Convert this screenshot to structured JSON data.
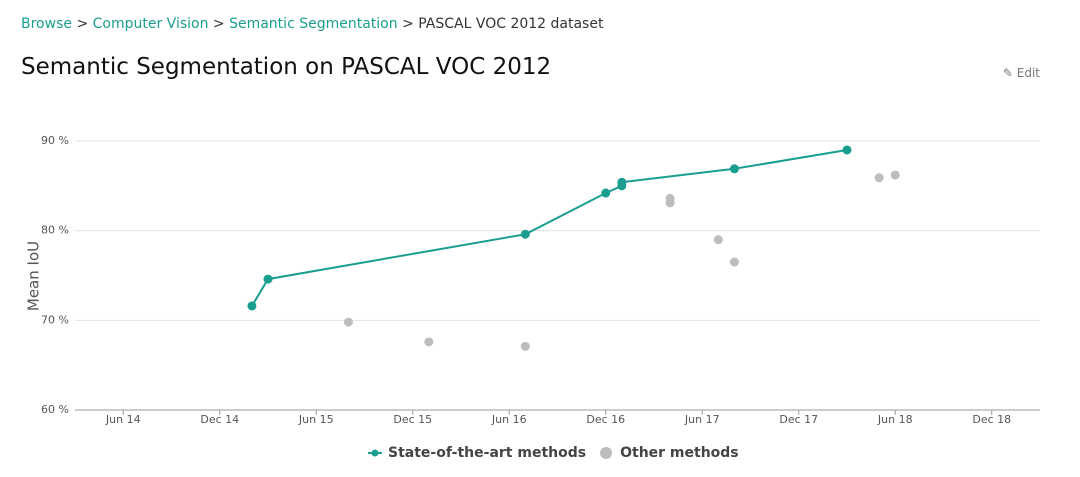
{
  "breadcrumb": {
    "items": [
      "Browse",
      "Computer Vision",
      "Semantic Segmentation",
      "PASCAL VOC 2012 dataset"
    ],
    "separator": ">"
  },
  "title": "Semantic Segmentation on PASCAL VOC 2012",
  "edit": "Edit",
  "chart_data": {
    "type": "line",
    "ylabel": "Mean IoU",
    "xlim": [
      "2014-03",
      "2019-03"
    ],
    "xticks": [
      {
        "value": "2014-06",
        "label": "Jun 14"
      },
      {
        "value": "2014-12",
        "label": "Dec 14"
      },
      {
        "value": "2015-06",
        "label": "Jun 15"
      },
      {
        "value": "2015-12",
        "label": "Dec 15"
      },
      {
        "value": "2016-06",
        "label": "Jun 16"
      },
      {
        "value": "2016-12",
        "label": "Dec 16"
      },
      {
        "value": "2017-06",
        "label": "Jun 17"
      },
      {
        "value": "2017-12",
        "label": "Dec 17"
      },
      {
        "value": "2018-06",
        "label": "Jun 18"
      },
      {
        "value": "2018-12",
        "label": "Dec 18"
      }
    ],
    "ylim": [
      60,
      90
    ],
    "yticks": [
      {
        "value": 60,
        "label": "60 %"
      },
      {
        "value": 70,
        "label": "70 %"
      },
      {
        "value": 80,
        "label": "80 %"
      },
      {
        "value": 90,
        "label": "90 %"
      }
    ],
    "grid": true,
    "legend": "bottom",
    "series": [
      {
        "name": "State-of-the-art methods",
        "color": "#1a9e8f",
        "mode": "line",
        "x": [
          "2015-02",
          "2015-03",
          "2016-07",
          "2016-12",
          "2017-01",
          "2017-01",
          "2017-08",
          "2018-03"
        ],
        "values": [
          71.6,
          74.6,
          79.6,
          84.2,
          85.0,
          85.4,
          86.9,
          89.0
        ]
      },
      {
        "name": "Other methods",
        "color": "#bdbdbd",
        "mode": "markers",
        "x": [
          "2015-08",
          "2016-01",
          "2016-07",
          "2017-04",
          "2017-04",
          "2017-07",
          "2017-08",
          "2018-05",
          "2018-06"
        ],
        "values": [
          69.8,
          67.6,
          67.1,
          83.1,
          83.6,
          79.0,
          76.5,
          85.9,
          86.2
        ]
      }
    ]
  }
}
